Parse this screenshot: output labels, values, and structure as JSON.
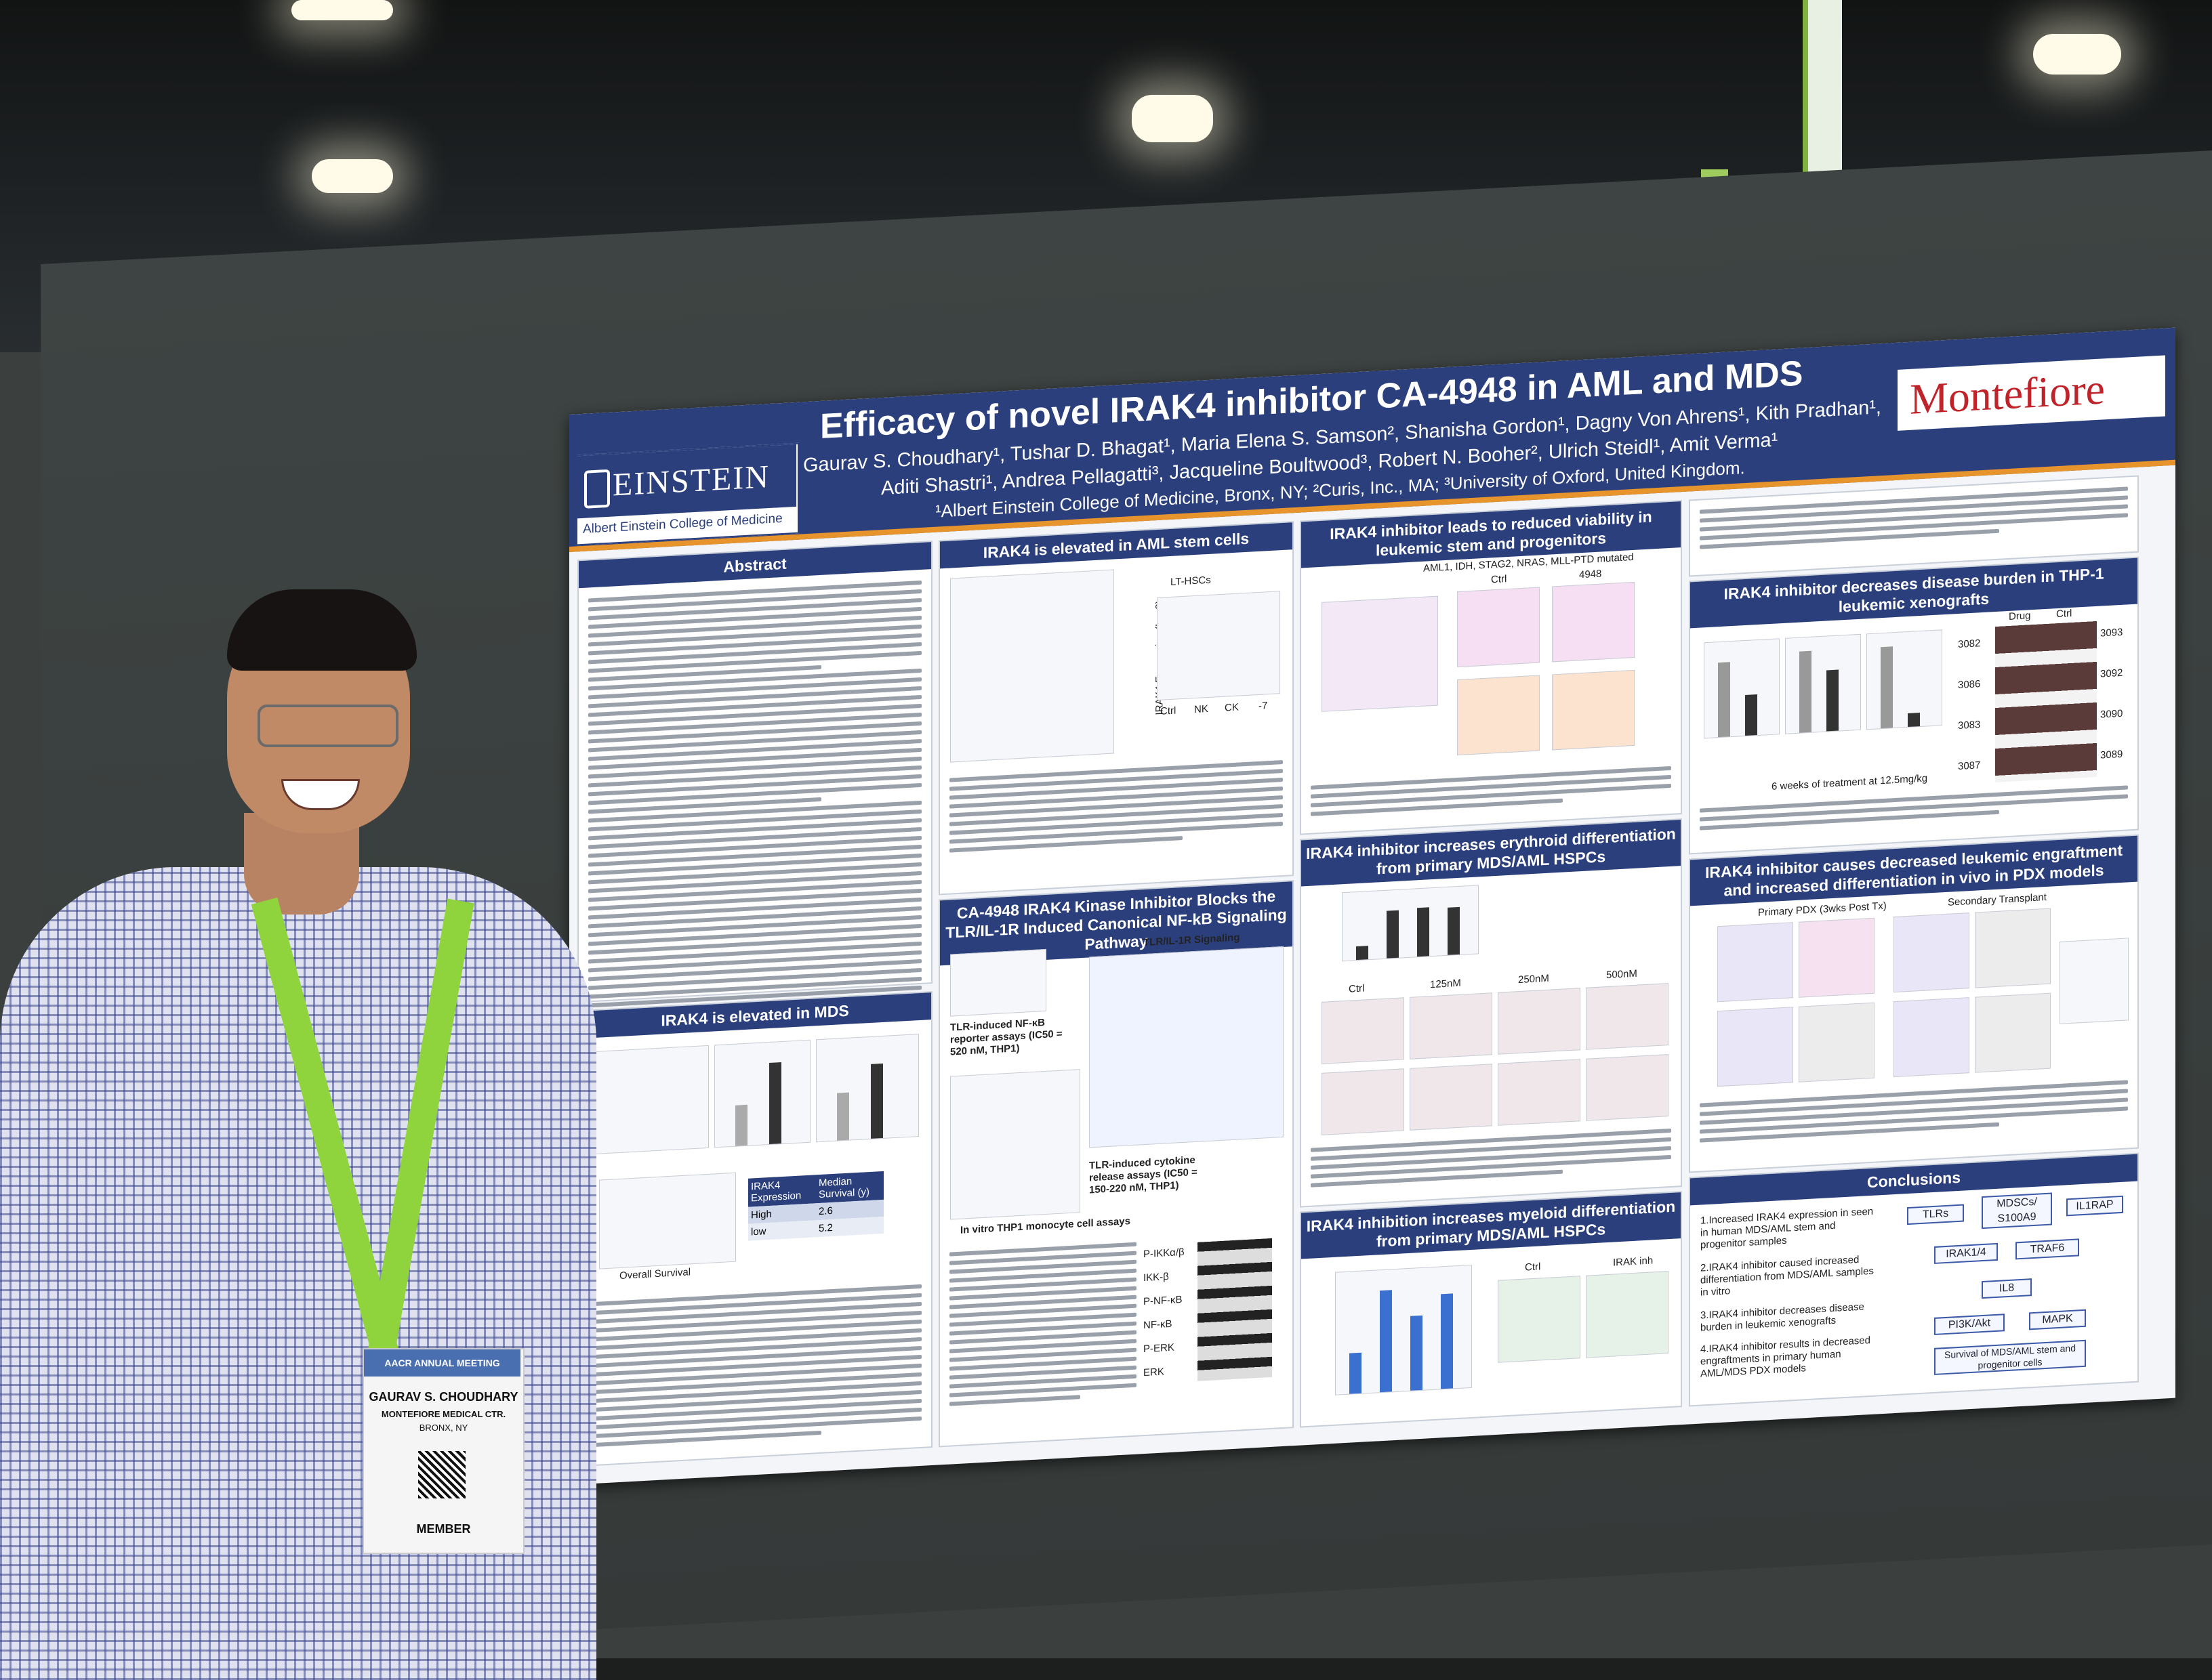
{
  "poster": {
    "title": "Efficacy of novel IRAK4 inhibitor CA-4948 in AML and MDS",
    "authors_line1": "Gaurav S. Choudhary¹, Tushar D. Bhagat¹, Maria Elena S. Samson², Shanisha Gordon¹, Dagny Von Ahrens¹, Kith Pradhan¹,",
    "authors_line2": "Aditi Shastri¹, Andrea Pellagatti³, Jacqueline Boultwood³, Robert N. Booher², Ulrich Steidl¹, Amit Verma¹",
    "affiliations": "¹Albert Einstein College of Medicine, Bronx, NY; ²Curis, Inc., MA; ³University of Oxford, United Kingdom.",
    "logo_left_name": "EINSTEIN",
    "logo_left_sub": "Albert Einstein College of Medicine",
    "logo_right": "Montefiore"
  },
  "sections": {
    "abstract": "Abstract",
    "irak4_mds": "IRAK4 is elevated in MDS",
    "irak4_aml": "IRAK4 is elevated in AML stem cells",
    "ca4948_blocks": "CA-4948 IRAK4 Kinase Inhibitor Blocks the TLR/IL-1R Induced Canonical NF-kB Signaling Pathway",
    "viability": "IRAK4 inhibitor leads to reduced viability in leukemic stem and progenitors",
    "erythroid": "IRAK4 inhibitor increases erythroid differentiation from primary MDS/AML HSPCs",
    "myeloid": "IRAK4 inhibition increases myeloid differentiation from primary MDS/AML HSPCs",
    "thp1": "IRAK4 inhibitor decreases disease burden in THP-1 leukemic xenografts",
    "pdx": "IRAK4 inhibitor causes decreased leukemic engraftment and increased differentiation in vivo in PDX models",
    "conclusions": "Conclusions"
  },
  "figure_labels": {
    "aml_stem_axis": "IRAK4 Expression (Log2)",
    "aml_stem_groups": [
      "Ctrl",
      "NK",
      "CK",
      "-7"
    ],
    "lt_hscs": "LT-HSCs",
    "aml_mutations": "AML1, IDH, STAG2, NRAS, MLL-PTD mutated",
    "viability_conditions": [
      "Ctrl",
      "4948"
    ],
    "survival_table_head": [
      "IRAK4 Expression",
      "Median Survival (y)"
    ],
    "survival_table_rows": [
      [
        "High",
        "2.6"
      ],
      [
        "low",
        "5.2"
      ]
    ],
    "overall_survival": "Overall Survival",
    "erythroid_doses": [
      "Ctrl",
      "125nM",
      "250nM",
      "500nM"
    ],
    "myeloid_conditions": [
      "Ctrl",
      "IRAK inh"
    ],
    "xenograft_note": "6 weeks of treatment at 12.5mg/kg",
    "xenograft_ids": [
      "3082",
      "3093",
      "3086",
      "3092",
      "3083",
      "3090",
      "3087",
      "3089"
    ],
    "drug": "Drug",
    "ctrl": "Ctrl",
    "pdx_labels": [
      "Primary PDX (3wks Post Tx)",
      "Secondary Transplant"
    ],
    "tlr_signaling": "TLR/IL-1R Signaling",
    "tlr_reporter": "TLR-induced NF-κB reporter assays (IC50 = 520 nM, THP1)",
    "cytokine_assay": "TLR-induced cytokine release assays (IC50 = 150-220 nM, THP1)",
    "western_labels": [
      "P-IKKα/β",
      "IKK-β",
      "P-NF-κB",
      "NF-κB",
      "P-ERK",
      "ERK"
    ],
    "thp1_assays": "In vitro THP1 monocyte cell assays"
  },
  "conclusions": {
    "items": [
      "1.Increased IRAK4 expression in seen in human MDS/AML stem and progenitor samples",
      "2.IRAK4 inhibitor caused increased differentiation from MDS/AML samples in vitro",
      "3.IRAK4 inhibitor decreases disease burden in leukemic xenografts",
      "4.IRAK4 inhibitor results in decreased engraftments in primary human AML/MDS PDX models"
    ],
    "flow": [
      "TLRs",
      "MDSCs/ S100A9",
      "IL1RAP",
      "IRAK1/4",
      "TRAF6",
      "IL8",
      "PI3K/Akt",
      "MAPK",
      "Survival of MDS/AML stem and progenitor cells"
    ]
  },
  "badge": {
    "name": "GAURAV S. CHOUDHARY",
    "org": "MONTEFIORE MEDICAL CTR.",
    "city": "BRONX, NY",
    "type": "MEMBER",
    "header": "AACR ANNUAL MEETING"
  },
  "colors": {
    "poster_header": "#2b3f7c",
    "accent_stripe": "#e8942c",
    "lanyard": "#8fd43c",
    "montefiore_red": "#c0242b"
  }
}
